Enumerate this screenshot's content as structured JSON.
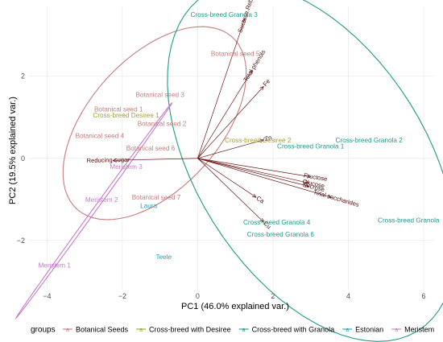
{
  "chart_data": {
    "type": "scatter",
    "title": "",
    "xlabel": "PC1 (46.0% explained var.)",
    "ylabel": "PC2 (19.5% explained var.)",
    "xlim": [
      -4.5,
      6.3
    ],
    "ylim": [
      -3.2,
      3.7
    ],
    "xticks": [
      -4,
      -2,
      0,
      2,
      4,
      6
    ],
    "yticks": [
      -2,
      0,
      2
    ],
    "grid": true,
    "legend_title": "groups",
    "legend_position": "bottom",
    "groups": [
      {
        "name": "Botanical Seeds",
        "color": "#c77c7c"
      },
      {
        "name": "Cross-breed with Desiree",
        "color": "#a3a032"
      },
      {
        "name": "Cross-breed with Granola",
        "color": "#1d9a8a"
      },
      {
        "name": "Estonian",
        "color": "#2aa3b8"
      },
      {
        "name": "Meristem",
        "color": "#c77cc8"
      }
    ],
    "points": [
      {
        "label": "Cross-breed Granola 3",
        "group": "Cross-breed with Granola",
        "x": 0.7,
        "y": 3.5
      },
      {
        "label": "Botanical seed 5",
        "group": "Botanical Seeds",
        "x": 1.0,
        "y": 2.55
      },
      {
        "label": "Botanical seed 3",
        "group": "Botanical Seeds",
        "x": -1.0,
        "y": 1.55
      },
      {
        "label": "Botanical seed 1",
        "group": "Botanical Seeds",
        "x": -2.1,
        "y": 1.2
      },
      {
        "label": "Cross-breed Desiree 1",
        "group": "Cross-breed with Desiree",
        "x": -1.9,
        "y": 1.05
      },
      {
        "label": "Botanical seed 2",
        "group": "Botanical Seeds",
        "x": -0.95,
        "y": 0.85
      },
      {
        "label": "Botanical seed 4",
        "group": "Botanical Seeds",
        "x": -2.6,
        "y": 0.55
      },
      {
        "label": "Botanical seed 6",
        "group": "Botanical Seeds",
        "x": -1.25,
        "y": 0.25
      },
      {
        "label": "Meristem 3",
        "group": "Meristem",
        "x": -1.9,
        "y": -0.2
      },
      {
        "label": "Meristem 2",
        "group": "Meristem",
        "x": -2.55,
        "y": -1.0
      },
      {
        "label": "Botanical seed 7",
        "group": "Botanical Seeds",
        "x": -1.1,
        "y": -0.95
      },
      {
        "label": "Laura",
        "group": "Estonian",
        "x": -1.3,
        "y": -1.15
      },
      {
        "label": "Meristem 1",
        "group": "Meristem",
        "x": -3.8,
        "y": -2.6
      },
      {
        "label": "Teele",
        "group": "Estonian",
        "x": -0.9,
        "y": -2.4
      },
      {
        "label": "Cross-breed Desiree 2",
        "group": "Cross-breed with Desiree",
        "x": 1.6,
        "y": 0.45
      },
      {
        "label": "Cross-breed Granola 1",
        "group": "Cross-breed with Granola",
        "x": 3.0,
        "y": 0.3
      },
      {
        "label": "Cross-breed Granola 2",
        "group": "Cross-breed with Granola",
        "x": 4.55,
        "y": 0.45
      },
      {
        "label": "Cross-breed Granola 4",
        "group": "Cross-breed with Granola",
        "x": 2.1,
        "y": -1.55
      },
      {
        "label": "Cross-breed Granola 6",
        "group": "Cross-breed with Granola",
        "x": 2.2,
        "y": -1.85
      },
      {
        "label": "Cross-breed Granola",
        "group": "Cross-breed with Granola",
        "x": 5.6,
        "y": -1.5
      }
    ],
    "loadings": [
      {
        "label": "Sucrose.Rebu",
        "x": 1.25,
        "y": 3.4
      },
      {
        "label": "Total phenols",
        "x": 1.45,
        "y": 2.15
      },
      {
        "label": "Fe",
        "x": 1.75,
        "y": 1.75
      },
      {
        "label": "Zn",
        "x": 1.75,
        "y": 0.45
      },
      {
        "label": "Fructose",
        "x": 3.0,
        "y": -0.45
      },
      {
        "label": "Glucose",
        "x": 2.95,
        "y": -0.6
      },
      {
        "label": "Sucrose",
        "x": 2.95,
        "y": -0.68
      },
      {
        "label": "Total saccharides",
        "x": 3.55,
        "y": -0.95
      },
      {
        "label": "Ca",
        "x": 1.55,
        "y": -0.95
      },
      {
        "label": "Cu",
        "x": 1.75,
        "y": -1.55
      },
      {
        "label": "Reducing.sugar",
        "x": -2.25,
        "y": -0.05
      }
    ]
  }
}
